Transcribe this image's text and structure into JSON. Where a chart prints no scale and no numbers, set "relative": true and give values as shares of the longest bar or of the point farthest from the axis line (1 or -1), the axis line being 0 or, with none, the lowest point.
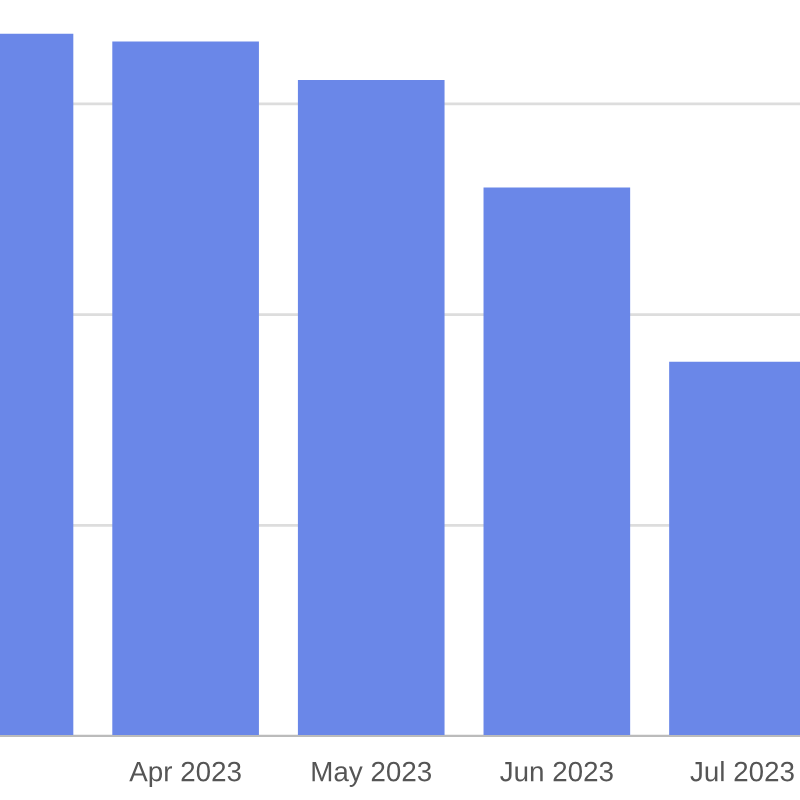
{
  "chart_data": {
    "type": "bar",
    "relative": true,
    "categories": [
      null,
      "Apr 2023",
      "May 2023",
      "Jun 2023",
      "Jul 2023"
    ],
    "values": [
      1,
      0.989,
      0.934,
      0.781,
      0.533
    ],
    "color": "#6a87e8",
    "grid": "y"
  }
}
